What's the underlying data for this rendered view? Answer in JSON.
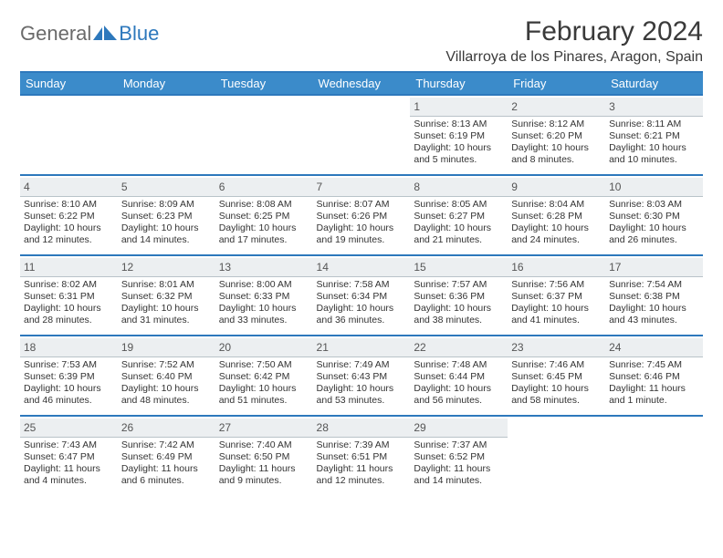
{
  "logo": {
    "part1": "General",
    "part2": "Blue"
  },
  "title": "February 2024",
  "location": "Villarroya de los Pinares, Aragon, Spain",
  "colors": {
    "accent": "#2d78bc",
    "header_bg": "#3b8bca",
    "header_text": "#ffffff",
    "daynum_bg": "#eceff1",
    "daynum_border": "#b9c3c9",
    "text": "#333333",
    "logo_gray": "#6a6a6a"
  },
  "dayNames": [
    "Sunday",
    "Monday",
    "Tuesday",
    "Wednesday",
    "Thursday",
    "Friday",
    "Saturday"
  ],
  "weeks": [
    [
      {
        "n": "",
        "lines": [
          "",
          "",
          "",
          ""
        ]
      },
      {
        "n": "",
        "lines": [
          "",
          "",
          "",
          ""
        ]
      },
      {
        "n": "",
        "lines": [
          "",
          "",
          "",
          ""
        ]
      },
      {
        "n": "",
        "lines": [
          "",
          "",
          "",
          ""
        ]
      },
      {
        "n": "1",
        "lines": [
          "Sunrise: 8:13 AM",
          "Sunset: 6:19 PM",
          "Daylight: 10 hours",
          "and 5 minutes."
        ]
      },
      {
        "n": "2",
        "lines": [
          "Sunrise: 8:12 AM",
          "Sunset: 6:20 PM",
          "Daylight: 10 hours",
          "and 8 minutes."
        ]
      },
      {
        "n": "3",
        "lines": [
          "Sunrise: 8:11 AM",
          "Sunset: 6:21 PM",
          "Daylight: 10 hours",
          "and 10 minutes."
        ]
      }
    ],
    [
      {
        "n": "4",
        "lines": [
          "Sunrise: 8:10 AM",
          "Sunset: 6:22 PM",
          "Daylight: 10 hours",
          "and 12 minutes."
        ]
      },
      {
        "n": "5",
        "lines": [
          "Sunrise: 8:09 AM",
          "Sunset: 6:23 PM",
          "Daylight: 10 hours",
          "and 14 minutes."
        ]
      },
      {
        "n": "6",
        "lines": [
          "Sunrise: 8:08 AM",
          "Sunset: 6:25 PM",
          "Daylight: 10 hours",
          "and 17 minutes."
        ]
      },
      {
        "n": "7",
        "lines": [
          "Sunrise: 8:07 AM",
          "Sunset: 6:26 PM",
          "Daylight: 10 hours",
          "and 19 minutes."
        ]
      },
      {
        "n": "8",
        "lines": [
          "Sunrise: 8:05 AM",
          "Sunset: 6:27 PM",
          "Daylight: 10 hours",
          "and 21 minutes."
        ]
      },
      {
        "n": "9",
        "lines": [
          "Sunrise: 8:04 AM",
          "Sunset: 6:28 PM",
          "Daylight: 10 hours",
          "and 24 minutes."
        ]
      },
      {
        "n": "10",
        "lines": [
          "Sunrise: 8:03 AM",
          "Sunset: 6:30 PM",
          "Daylight: 10 hours",
          "and 26 minutes."
        ]
      }
    ],
    [
      {
        "n": "11",
        "lines": [
          "Sunrise: 8:02 AM",
          "Sunset: 6:31 PM",
          "Daylight: 10 hours",
          "and 28 minutes."
        ]
      },
      {
        "n": "12",
        "lines": [
          "Sunrise: 8:01 AM",
          "Sunset: 6:32 PM",
          "Daylight: 10 hours",
          "and 31 minutes."
        ]
      },
      {
        "n": "13",
        "lines": [
          "Sunrise: 8:00 AM",
          "Sunset: 6:33 PM",
          "Daylight: 10 hours",
          "and 33 minutes."
        ]
      },
      {
        "n": "14",
        "lines": [
          "Sunrise: 7:58 AM",
          "Sunset: 6:34 PM",
          "Daylight: 10 hours",
          "and 36 minutes."
        ]
      },
      {
        "n": "15",
        "lines": [
          "Sunrise: 7:57 AM",
          "Sunset: 6:36 PM",
          "Daylight: 10 hours",
          "and 38 minutes."
        ]
      },
      {
        "n": "16",
        "lines": [
          "Sunrise: 7:56 AM",
          "Sunset: 6:37 PM",
          "Daylight: 10 hours",
          "and 41 minutes."
        ]
      },
      {
        "n": "17",
        "lines": [
          "Sunrise: 7:54 AM",
          "Sunset: 6:38 PM",
          "Daylight: 10 hours",
          "and 43 minutes."
        ]
      }
    ],
    [
      {
        "n": "18",
        "lines": [
          "Sunrise: 7:53 AM",
          "Sunset: 6:39 PM",
          "Daylight: 10 hours",
          "and 46 minutes."
        ]
      },
      {
        "n": "19",
        "lines": [
          "Sunrise: 7:52 AM",
          "Sunset: 6:40 PM",
          "Daylight: 10 hours",
          "and 48 minutes."
        ]
      },
      {
        "n": "20",
        "lines": [
          "Sunrise: 7:50 AM",
          "Sunset: 6:42 PM",
          "Daylight: 10 hours",
          "and 51 minutes."
        ]
      },
      {
        "n": "21",
        "lines": [
          "Sunrise: 7:49 AM",
          "Sunset: 6:43 PM",
          "Daylight: 10 hours",
          "and 53 minutes."
        ]
      },
      {
        "n": "22",
        "lines": [
          "Sunrise: 7:48 AM",
          "Sunset: 6:44 PM",
          "Daylight: 10 hours",
          "and 56 minutes."
        ]
      },
      {
        "n": "23",
        "lines": [
          "Sunrise: 7:46 AM",
          "Sunset: 6:45 PM",
          "Daylight: 10 hours",
          "and 58 minutes."
        ]
      },
      {
        "n": "24",
        "lines": [
          "Sunrise: 7:45 AM",
          "Sunset: 6:46 PM",
          "Daylight: 11 hours",
          "and 1 minute."
        ]
      }
    ],
    [
      {
        "n": "25",
        "lines": [
          "Sunrise: 7:43 AM",
          "Sunset: 6:47 PM",
          "Daylight: 11 hours",
          "and 4 minutes."
        ]
      },
      {
        "n": "26",
        "lines": [
          "Sunrise: 7:42 AM",
          "Sunset: 6:49 PM",
          "Daylight: 11 hours",
          "and 6 minutes."
        ]
      },
      {
        "n": "27",
        "lines": [
          "Sunrise: 7:40 AM",
          "Sunset: 6:50 PM",
          "Daylight: 11 hours",
          "and 9 minutes."
        ]
      },
      {
        "n": "28",
        "lines": [
          "Sunrise: 7:39 AM",
          "Sunset: 6:51 PM",
          "Daylight: 11 hours",
          "and 12 minutes."
        ]
      },
      {
        "n": "29",
        "lines": [
          "Sunrise: 7:37 AM",
          "Sunset: 6:52 PM",
          "Daylight: 11 hours",
          "and 14 minutes."
        ]
      },
      {
        "n": "",
        "lines": [
          "",
          "",
          "",
          ""
        ]
      },
      {
        "n": "",
        "lines": [
          "",
          "",
          "",
          ""
        ]
      }
    ]
  ]
}
